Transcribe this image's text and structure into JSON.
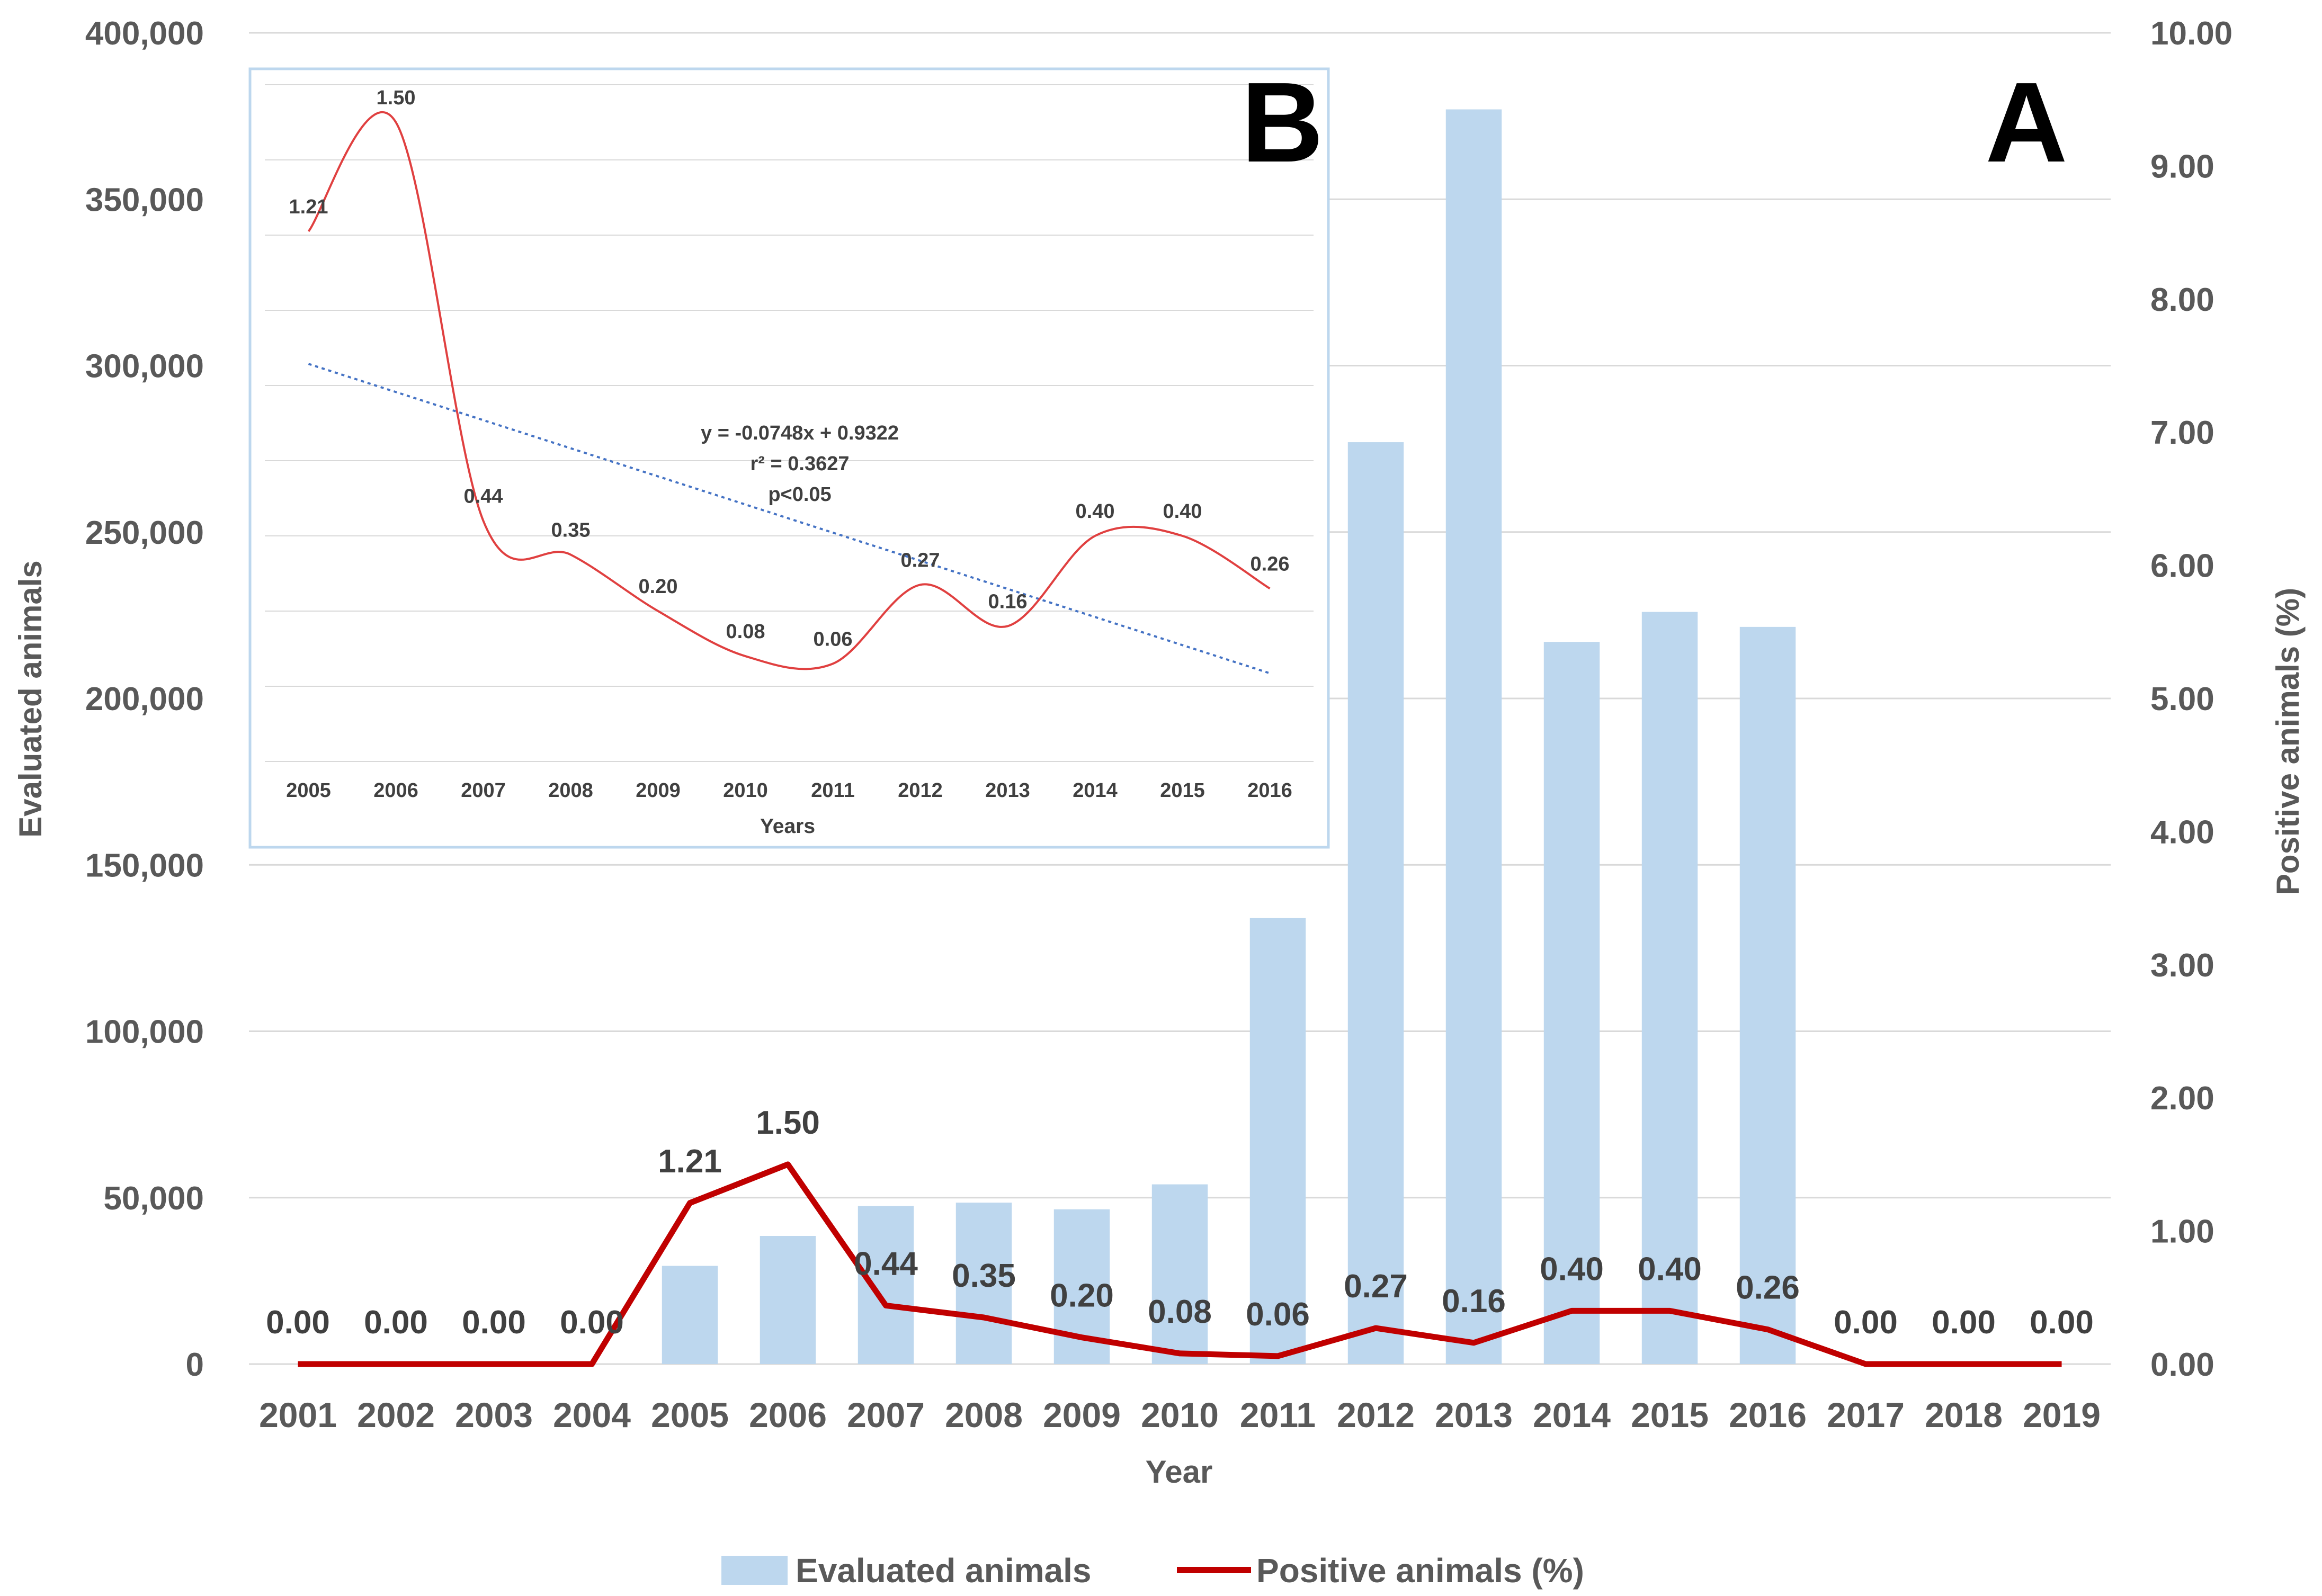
{
  "colors": {
    "bars": "#bdd7ee",
    "line_main": "#c00000",
    "line_inset": "#e04040",
    "trend": "#4472c4",
    "grid": "#d9d9d9",
    "inset_border": "#bdd7ee",
    "text": "#595959"
  },
  "chart_data": [
    {
      "panel": "A",
      "type": "bar",
      "categories": [
        "2001",
        "2002",
        "2003",
        "2004",
        "2005",
        "2006",
        "2007",
        "2008",
        "2009",
        "2010",
        "2011",
        "2012",
        "2013",
        "2014",
        "2015",
        "2016",
        "2017",
        "2018",
        "2019"
      ],
      "series": [
        {
          "name": "Evaluated animals",
          "type": "bar",
          "axis": "left",
          "values": [
            0,
            0,
            0,
            0,
            29500,
            38500,
            47500,
            48500,
            46500,
            54000,
            134000,
            277000,
            377000,
            217000,
            226000,
            221500,
            0,
            0,
            0
          ]
        },
        {
          "name": "Positive animals (%)",
          "type": "line",
          "axis": "right",
          "values": [
            0.0,
            0.0,
            0.0,
            0.0,
            1.21,
            1.5,
            0.44,
            0.35,
            0.2,
            0.08,
            0.06,
            0.27,
            0.16,
            0.4,
            0.4,
            0.26,
            0.0,
            0.0,
            0.0
          ],
          "data_labels": [
            "0.00",
            "0.00",
            "0.00",
            "0.00",
            "1.21",
            "1.50",
            "0.44",
            "0.35",
            "0.20",
            "0.08",
            "0.06",
            "0.27",
            "0.16",
            "0.40",
            "0.40",
            "0.26",
            "0.00",
            "0.00",
            "0.00"
          ]
        }
      ],
      "xlabel": "Year",
      "ylabel": "Evaluated animals",
      "y2label": "Positive animals (%)",
      "ylim": [
        0,
        400000
      ],
      "yticks": [
        0,
        50000,
        100000,
        150000,
        200000,
        250000,
        300000,
        350000,
        400000
      ],
      "ytick_labels": [
        "0",
        "50,000",
        "100,000",
        "150,000",
        "200,000",
        "250,000",
        "300,000",
        "350,000",
        "400,000"
      ],
      "y2lim": [
        0,
        10
      ],
      "y2ticks": [
        0,
        1,
        2,
        3,
        4,
        5,
        6,
        7,
        8,
        9,
        10
      ],
      "y2tick_labels": [
        "0.00",
        "1.00",
        "2.00",
        "3.00",
        "4.00",
        "5.00",
        "6.00",
        "7.00",
        "8.00",
        "9.00",
        "10.00"
      ],
      "grid": true,
      "legend": [
        "Evaluated animals",
        "Positive animals (%)"
      ],
      "legend_position": "bottom",
      "panel_label": "A"
    },
    {
      "panel": "B",
      "type": "line",
      "categories": [
        "2005",
        "2006",
        "2007",
        "2008",
        "2009",
        "2010",
        "2011",
        "2012",
        "2013",
        "2014",
        "2015",
        "2016"
      ],
      "values": [
        1.21,
        1.5,
        0.44,
        0.35,
        0.2,
        0.08,
        0.06,
        0.27,
        0.16,
        0.4,
        0.4,
        0.26
      ],
      "data_labels": [
        "1.21",
        "1.50",
        "0.44",
        "0.35",
        "0.20",
        "0.08",
        "0.06",
        "0.27",
        "0.16",
        "0.40",
        "0.40",
        "0.26"
      ],
      "xlabel": "Years",
      "ylim": [
        -0.2,
        1.6
      ],
      "grid": true,
      "smoothed": true,
      "trendline": {
        "slope": -0.0748,
        "intercept": 0.9322,
        "equation": "y = -0.0748x + 0.9322",
        "r2": "r² = 0.3627",
        "p": "p<0.05"
      },
      "panel_label": "B"
    }
  ]
}
